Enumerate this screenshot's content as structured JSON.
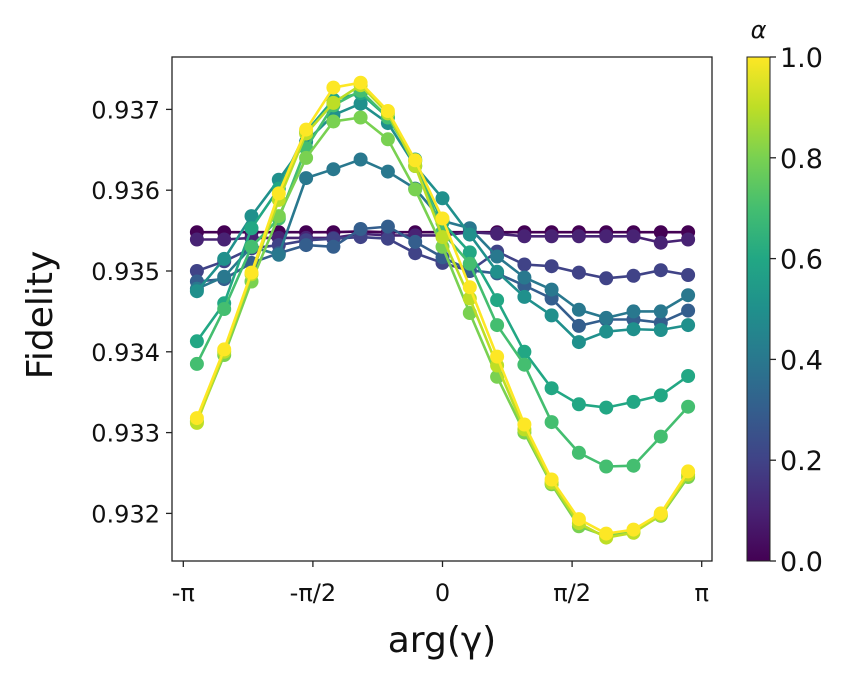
{
  "chart_data": {
    "type": "line",
    "title": "",
    "xlabel": "arg(γ)",
    "ylabel": "Fidelity",
    "xlim": [
      -3.14159,
      3.14159
    ],
    "ylim": [
      0.93143,
      0.93764
    ],
    "grid": false,
    "marker": "circle",
    "x_ticks": [
      {
        "value": -3.14159,
        "label": "-π"
      },
      {
        "value": -1.5708,
        "label": "-π/2"
      },
      {
        "value": 0,
        "label": "0"
      },
      {
        "value": 1.5708,
        "label": "π/2"
      },
      {
        "value": 3.14159,
        "label": "π"
      }
    ],
    "y_ticks": [
      {
        "value": 0.932,
        "label": "0.932"
      },
      {
        "value": 0.933,
        "label": "0.933"
      },
      {
        "value": 0.934,
        "label": "0.934"
      },
      {
        "value": 0.935,
        "label": "0.935"
      },
      {
        "value": 0.936,
        "label": "0.936"
      },
      {
        "value": 0.937,
        "label": "0.937"
      }
    ],
    "x": [
      -2.9762,
      -2.6455,
      -2.3148,
      -1.9841,
      -1.6534,
      -1.3228,
      -0.9921,
      -0.6614,
      -0.3307,
      0.0,
      0.3307,
      0.6614,
      0.9921,
      1.3228,
      1.6534,
      1.9841,
      2.3148,
      2.6455,
      2.9762
    ],
    "colorbar": {
      "title": "α",
      "colormap": "viridis",
      "range": [
        0.0,
        1.0
      ],
      "ticks": [
        "0.0",
        "0.2",
        "0.4",
        "0.6",
        "0.8",
        "1.0"
      ]
    },
    "series": [
      {
        "name": "α=0.0",
        "alpha": 0.0,
        "values": [
          0.93548,
          0.93548,
          0.93548,
          0.93548,
          0.93548,
          0.93548,
          0.93549,
          0.93548,
          0.93548,
          0.93548,
          0.93548,
          0.93548,
          0.93548,
          0.93548,
          0.93548,
          0.93548,
          0.93548,
          0.93548,
          0.93548
        ]
      },
      {
        "name": "α=0.1",
        "alpha": 0.1,
        "values": [
          0.93539,
          0.93539,
          0.93541,
          0.93541,
          0.93541,
          0.93541,
          0.93546,
          0.93544,
          0.93544,
          0.93544,
          0.93548,
          0.93546,
          0.93543,
          0.93543,
          0.93543,
          0.93543,
          0.93543,
          0.93535,
          0.93539
        ]
      },
      {
        "name": "α=0.2",
        "alpha": 0.2,
        "values": [
          0.935,
          0.93512,
          0.93528,
          0.93532,
          0.93538,
          0.9354,
          0.93542,
          0.9354,
          0.93522,
          0.9351,
          0.935,
          0.93524,
          0.93508,
          0.93506,
          0.93498,
          0.93491,
          0.93494,
          0.93501,
          0.93495
        ]
      },
      {
        "name": "α=0.3",
        "alpha": 0.3,
        "values": [
          0.93487,
          0.9349,
          0.9351,
          0.93522,
          0.93532,
          0.9353,
          0.93552,
          0.93555,
          0.93536,
          0.93517,
          0.93501,
          0.93497,
          0.93482,
          0.93466,
          0.93432,
          0.9344,
          0.9344,
          0.93436,
          0.93451
        ]
      },
      {
        "name": "α=0.4",
        "alpha": 0.4,
        "values": [
          0.93478,
          0.93493,
          0.9353,
          0.9352,
          0.93615,
          0.93626,
          0.93638,
          0.93623,
          0.93602,
          0.93562,
          0.93553,
          0.93518,
          0.93492,
          0.93477,
          0.93452,
          0.93442,
          0.9345,
          0.9345,
          0.9347
        ]
      },
      {
        "name": "α=0.5",
        "alpha": 0.5,
        "values": [
          0.93475,
          0.93515,
          0.93568,
          0.93613,
          0.9366,
          0.93693,
          0.93707,
          0.93683,
          0.9363,
          0.9359,
          0.93545,
          0.93499,
          0.93468,
          0.93445,
          0.93412,
          0.93425,
          0.93428,
          0.93427,
          0.93433
        ]
      },
      {
        "name": "α=0.6",
        "alpha": 0.6,
        "values": [
          0.93413,
          0.9346,
          0.93553,
          0.93602,
          0.93672,
          0.93712,
          0.9372,
          0.9369,
          0.93638,
          0.9356,
          0.93523,
          0.93464,
          0.934,
          0.93355,
          0.93335,
          0.93331,
          0.93338,
          0.93346,
          0.9337
        ]
      },
      {
        "name": "α=0.7",
        "alpha": 0.7,
        "values": [
          0.93385,
          0.93453,
          0.9353,
          0.93565,
          0.93652,
          0.93705,
          0.93723,
          0.9369,
          0.93636,
          0.93548,
          0.93509,
          0.93433,
          0.93384,
          0.93313,
          0.93275,
          0.93258,
          0.93259,
          0.93295,
          0.93332
        ]
      },
      {
        "name": "α=0.8",
        "alpha": 0.8,
        "values": [
          0.93314,
          0.93396,
          0.93487,
          0.93568,
          0.9364,
          0.93685,
          0.9369,
          0.93663,
          0.93601,
          0.9353,
          0.93448,
          0.93369,
          0.933,
          0.93236,
          0.93184,
          0.93172,
          0.93178,
          0.93197,
          0.93245
        ]
      },
      {
        "name": "α=0.9",
        "alpha": 0.9,
        "values": [
          0.93312,
          0.934,
          0.93496,
          0.93588,
          0.9367,
          0.93708,
          0.9373,
          0.93695,
          0.9363,
          0.93542,
          0.93466,
          0.93383,
          0.93304,
          0.93238,
          0.93188,
          0.9317,
          0.93176,
          0.93198,
          0.93248
        ]
      },
      {
        "name": "α=1.0",
        "alpha": 1.0,
        "values": [
          0.93318,
          0.93403,
          0.93498,
          0.93596,
          0.93675,
          0.93727,
          0.93733,
          0.93698,
          0.93637,
          0.93565,
          0.9348,
          0.93394,
          0.9331,
          0.93242,
          0.93193,
          0.93175,
          0.9318,
          0.932,
          0.93252
        ]
      }
    ]
  }
}
